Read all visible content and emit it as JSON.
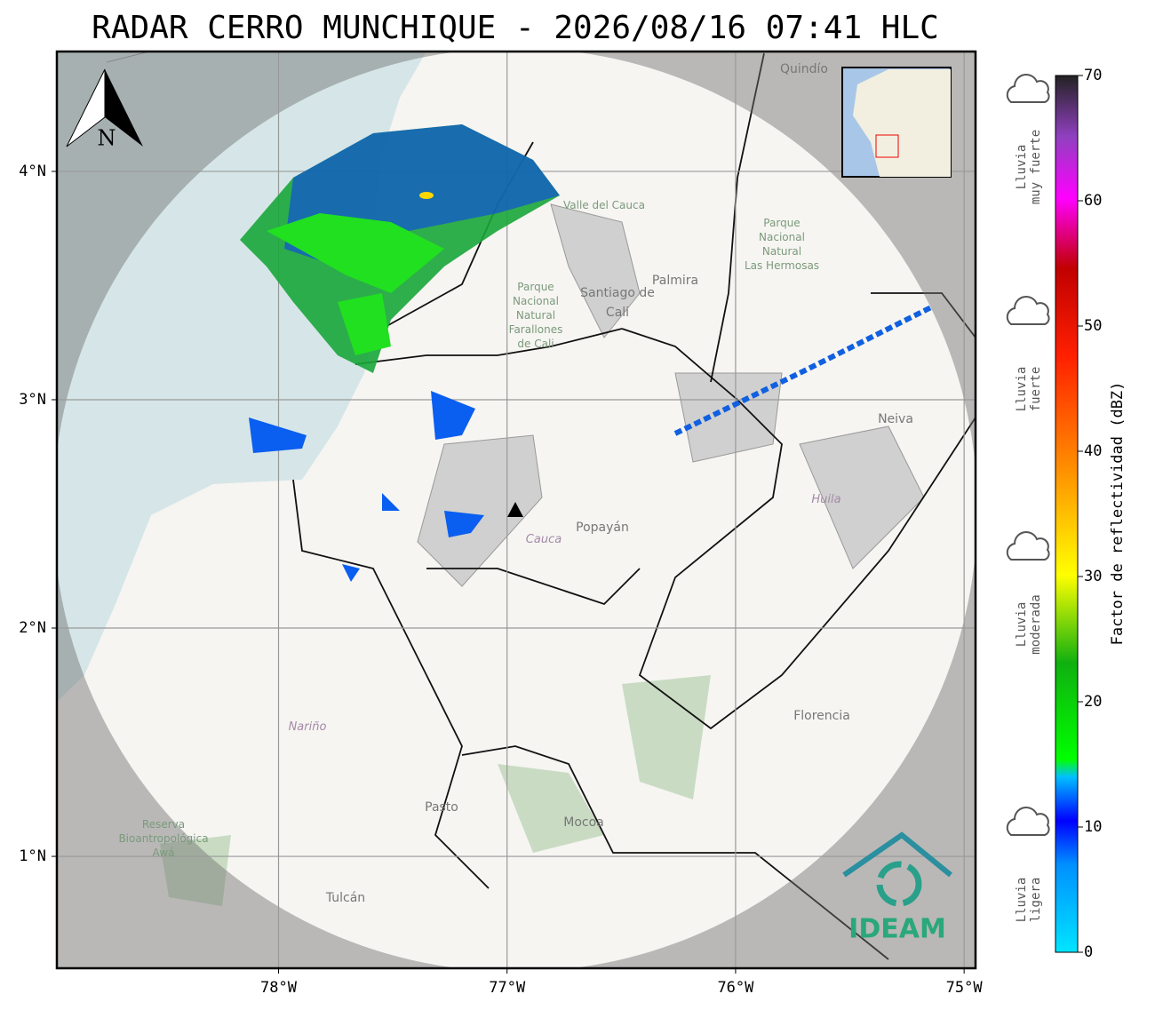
{
  "title": "RADAR CERRO MUNCHIQUE - 2026/08/16 07:41 HLC",
  "map": {
    "xlim": [
      -78.97,
      -74.95
    ],
    "ylim": [
      0.51,
      4.525
    ],
    "xticks": [
      {
        "value": -78,
        "label": "78°W"
      },
      {
        "value": -77,
        "label": "77°W"
      },
      {
        "value": -76,
        "label": "76°W"
      },
      {
        "value": -75,
        "label": "75°W"
      }
    ],
    "yticks": [
      {
        "value": 1,
        "label": "1°N"
      },
      {
        "value": 2,
        "label": "2°N"
      },
      {
        "value": 3,
        "label": "3°N"
      },
      {
        "value": 4,
        "label": "4°N"
      }
    ],
    "grid": true,
    "north_label": "N",
    "labels": {
      "quindio": "Quindío",
      "valle": "Valle del Cauca",
      "hermosas": [
        "Parque",
        "Nacional",
        "Natural",
        "Las Hermosas"
      ],
      "farallones": [
        "Parque",
        "Nacional",
        "Natural",
        "Farallones",
        "de Cali"
      ],
      "cali": [
        "Santiago de",
        "Cali"
      ],
      "palmira": "Palmira",
      "neiva": "Neiva",
      "huila": "Huila",
      "popayan": "Popayán",
      "cauca": "Cauca",
      "narino": "Nariño",
      "pasto": "Pasto",
      "mocoa": "Mocoa",
      "florencia": "Florencia",
      "tulcan": "Tulcán",
      "awa": [
        "Reserva",
        "Bioantropológica",
        "Awá"
      ]
    },
    "logo": "IDEAM"
  },
  "colorbar": {
    "label": "Factor de reflectividad (dBZ)",
    "lim": [
      0,
      70
    ],
    "ticks": [
      0,
      10,
      20,
      30,
      40,
      50,
      60,
      70
    ]
  },
  "legend": [
    [
      "Lluvia",
      "muy fuerte"
    ],
    [
      "Lluvia",
      "fuerte"
    ],
    [
      "Lluvia",
      "moderada"
    ],
    [
      "Lluvia",
      "ligera"
    ]
  ]
}
